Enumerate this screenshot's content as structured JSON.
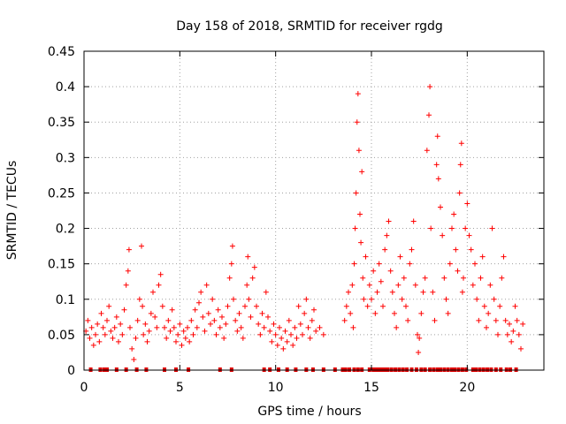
{
  "chart_data": {
    "type": "scatter",
    "title": "Day 158 of 2018, SRMTID for receiver rgdg",
    "xlabel": "GPS time / hours",
    "ylabel": "SRMTID / TECUs",
    "xlim": [
      0,
      24
    ],
    "ylim": [
      0,
      0.45
    ],
    "x_ticks": [
      0,
      5,
      10,
      15,
      20
    ],
    "x_tick_labels": [
      "0",
      "5",
      "10",
      "15",
      "20"
    ],
    "y_ticks": [
      0,
      0.05,
      0.1,
      0.15,
      0.2,
      0.25,
      0.3,
      0.35,
      0.4,
      0.45
    ],
    "y_tick_labels": [
      "0",
      "0.05",
      "0.1",
      "0.15",
      "0.2",
      "0.25",
      "0.3",
      "0.35",
      "0.4",
      "0.45"
    ],
    "grid": true,
    "marker": "+",
    "color": "#ff0000",
    "zero_marker_color": "#dd0000",
    "series": [
      {
        "name": "SRMTID",
        "points": [
          [
            0.1,
            0.055
          ],
          [
            0.2,
            0.07
          ],
          [
            0.3,
            0.045
          ],
          [
            0.4,
            0.06
          ],
          [
            0.5,
            0.035
          ],
          [
            0.6,
            0.05
          ],
          [
            0.7,
            0.065
          ],
          [
            0.8,
            0.04
          ],
          [
            0.9,
            0.08
          ],
          [
            1.0,
            0.06
          ],
          [
            1.1,
            0.05
          ],
          [
            1.2,
            0.07
          ],
          [
            1.3,
            0.09
          ],
          [
            1.4,
            0.055
          ],
          [
            1.5,
            0.045
          ],
          [
            1.6,
            0.06
          ],
          [
            1.7,
            0.075
          ],
          [
            1.8,
            0.04
          ],
          [
            1.9,
            0.065
          ],
          [
            2.0,
            0.05
          ],
          [
            2.1,
            0.085
          ],
          [
            2.2,
            0.12
          ],
          [
            2.3,
            0.14
          ],
          [
            2.35,
            0.17
          ],
          [
            2.4,
            0.06
          ],
          [
            2.5,
            0.03
          ],
          [
            2.6,
            0.015
          ],
          [
            2.7,
            0.045
          ],
          [
            2.8,
            0.07
          ],
          [
            2.9,
            0.1
          ],
          [
            3.0,
            0.175
          ],
          [
            3.05,
            0.09
          ],
          [
            3.1,
            0.05
          ],
          [
            3.2,
            0.065
          ],
          [
            3.3,
            0.04
          ],
          [
            3.4,
            0.055
          ],
          [
            3.5,
            0.08
          ],
          [
            3.6,
            0.11
          ],
          [
            3.7,
            0.075
          ],
          [
            3.8,
            0.06
          ],
          [
            3.9,
            0.12
          ],
          [
            4.0,
            0.135
          ],
          [
            4.1,
            0.09
          ],
          [
            4.2,
            0.06
          ],
          [
            4.3,
            0.045
          ],
          [
            4.4,
            0.07
          ],
          [
            4.5,
            0.055
          ],
          [
            4.6,
            0.085
          ],
          [
            4.7,
            0.06
          ],
          [
            4.8,
            0.04
          ],
          [
            4.9,
            0.05
          ],
          [
            5.0,
            0.065
          ],
          [
            5.1,
            0.035
          ],
          [
            5.2,
            0.055
          ],
          [
            5.3,
            0.045
          ],
          [
            5.4,
            0.06
          ],
          [
            5.5,
            0.04
          ],
          [
            5.6,
            0.07
          ],
          [
            5.7,
            0.05
          ],
          [
            5.8,
            0.085
          ],
          [
            5.9,
            0.06
          ],
          [
            6.0,
            0.095
          ],
          [
            6.1,
            0.11
          ],
          [
            6.2,
            0.075
          ],
          [
            6.3,
            0.055
          ],
          [
            6.4,
            0.12
          ],
          [
            6.5,
            0.08
          ],
          [
            6.6,
            0.065
          ],
          [
            6.7,
            0.1
          ],
          [
            6.8,
            0.07
          ],
          [
            6.9,
            0.05
          ],
          [
            7.0,
            0.085
          ],
          [
            7.1,
            0.06
          ],
          [
            7.2,
            0.075
          ],
          [
            7.3,
            0.045
          ],
          [
            7.4,
            0.065
          ],
          [
            7.5,
            0.09
          ],
          [
            7.6,
            0.13
          ],
          [
            7.7,
            0.15
          ],
          [
            7.75,
            0.175
          ],
          [
            7.8,
            0.1
          ],
          [
            7.9,
            0.07
          ],
          [
            8.0,
            0.055
          ],
          [
            8.1,
            0.08
          ],
          [
            8.2,
            0.06
          ],
          [
            8.3,
            0.045
          ],
          [
            8.4,
            0.09
          ],
          [
            8.5,
            0.12
          ],
          [
            8.55,
            0.16
          ],
          [
            8.6,
            0.1
          ],
          [
            8.7,
            0.075
          ],
          [
            8.8,
            0.13
          ],
          [
            8.9,
            0.145
          ],
          [
            9.0,
            0.09
          ],
          [
            9.1,
            0.065
          ],
          [
            9.2,
            0.05
          ],
          [
            9.3,
            0.08
          ],
          [
            9.4,
            0.06
          ],
          [
            9.5,
            0.11
          ],
          [
            9.6,
            0.075
          ],
          [
            9.7,
            0.055
          ],
          [
            9.8,
            0.04
          ],
          [
            9.9,
            0.065
          ],
          [
            10.0,
            0.05
          ],
          [
            10.1,
            0.035
          ],
          [
            10.2,
            0.06
          ],
          [
            10.3,
            0.045
          ],
          [
            10.4,
            0.03
          ],
          [
            10.5,
            0.055
          ],
          [
            10.6,
            0.04
          ],
          [
            10.7,
            0.07
          ],
          [
            10.8,
            0.05
          ],
          [
            10.9,
            0.035
          ],
          [
            11.0,
            0.06
          ],
          [
            11.1,
            0.045
          ],
          [
            11.2,
            0.09
          ],
          [
            11.3,
            0.065
          ],
          [
            11.4,
            0.05
          ],
          [
            11.5,
            0.08
          ],
          [
            11.6,
            0.1
          ],
          [
            11.7,
            0.06
          ],
          [
            11.8,
            0.045
          ],
          [
            11.9,
            0.07
          ],
          [
            12.0,
            0.085
          ],
          [
            12.1,
            0.055
          ],
          [
            12.3,
            0.06
          ],
          [
            12.5,
            0.05
          ],
          [
            13.6,
            0.07
          ],
          [
            13.7,
            0.09
          ],
          [
            13.8,
            0.11
          ],
          [
            13.9,
            0.08
          ],
          [
            14.0,
            0.12
          ],
          [
            14.05,
            0.06
          ],
          [
            14.1,
            0.15
          ],
          [
            14.15,
            0.2
          ],
          [
            14.2,
            0.25
          ],
          [
            14.25,
            0.35
          ],
          [
            14.3,
            0.39
          ],
          [
            14.35,
            0.31
          ],
          [
            14.4,
            0.22
          ],
          [
            14.45,
            0.18
          ],
          [
            14.5,
            0.28
          ],
          [
            14.55,
            0.13
          ],
          [
            14.6,
            0.1
          ],
          [
            14.7,
            0.16
          ],
          [
            14.8,
            0.09
          ],
          [
            14.9,
            0.12
          ],
          [
            15.0,
            0.1
          ],
          [
            15.1,
            0.14
          ],
          [
            15.2,
            0.08
          ],
          [
            15.3,
            0.11
          ],
          [
            15.4,
            0.15
          ],
          [
            15.5,
            0.125
          ],
          [
            15.6,
            0.09
          ],
          [
            15.7,
            0.17
          ],
          [
            15.8,
            0.19
          ],
          [
            15.9,
            0.21
          ],
          [
            16.0,
            0.14
          ],
          [
            16.1,
            0.11
          ],
          [
            16.2,
            0.08
          ],
          [
            16.3,
            0.06
          ],
          [
            16.4,
            0.12
          ],
          [
            16.5,
            0.16
          ],
          [
            16.6,
            0.1
          ],
          [
            16.7,
            0.13
          ],
          [
            16.8,
            0.09
          ],
          [
            16.9,
            0.07
          ],
          [
            17.0,
            0.15
          ],
          [
            17.1,
            0.17
          ],
          [
            17.2,
            0.21
          ],
          [
            17.3,
            0.12
          ],
          [
            17.4,
            0.05
          ],
          [
            17.45,
            0.025
          ],
          [
            17.5,
            0.045
          ],
          [
            17.6,
            0.08
          ],
          [
            17.7,
            0.11
          ],
          [
            17.8,
            0.13
          ],
          [
            17.9,
            0.31
          ],
          [
            18.0,
            0.36
          ],
          [
            18.05,
            0.4
          ],
          [
            18.1,
            0.2
          ],
          [
            18.2,
            0.11
          ],
          [
            18.3,
            0.07
          ],
          [
            18.4,
            0.29
          ],
          [
            18.45,
            0.33
          ],
          [
            18.5,
            0.27
          ],
          [
            18.6,
            0.23
          ],
          [
            18.7,
            0.19
          ],
          [
            18.8,
            0.13
          ],
          [
            18.9,
            0.1
          ],
          [
            19.0,
            0.08
          ],
          [
            19.1,
            0.15
          ],
          [
            19.2,
            0.2
          ],
          [
            19.3,
            0.22
          ],
          [
            19.4,
            0.17
          ],
          [
            19.5,
            0.14
          ],
          [
            19.6,
            0.25
          ],
          [
            19.65,
            0.29
          ],
          [
            19.7,
            0.32
          ],
          [
            19.75,
            0.11
          ],
          [
            19.8,
            0.13
          ],
          [
            19.9,
            0.2
          ],
          [
            20.0,
            0.235
          ],
          [
            20.1,
            0.19
          ],
          [
            20.2,
            0.17
          ],
          [
            20.3,
            0.12
          ],
          [
            20.4,
            0.15
          ],
          [
            20.5,
            0.1
          ],
          [
            20.6,
            0.07
          ],
          [
            20.7,
            0.13
          ],
          [
            20.8,
            0.16
          ],
          [
            20.9,
            0.09
          ],
          [
            21.0,
            0.06
          ],
          [
            21.1,
            0.08
          ],
          [
            21.2,
            0.12
          ],
          [
            21.3,
            0.2
          ],
          [
            21.4,
            0.1
          ],
          [
            21.5,
            0.07
          ],
          [
            21.6,
            0.05
          ],
          [
            21.7,
            0.09
          ],
          [
            21.8,
            0.13
          ],
          [
            21.9,
            0.16
          ],
          [
            22.0,
            0.07
          ],
          [
            22.1,
            0.05
          ],
          [
            22.2,
            0.065
          ],
          [
            22.3,
            0.04
          ],
          [
            22.4,
            0.055
          ],
          [
            22.5,
            0.09
          ],
          [
            22.6,
            0.07
          ],
          [
            22.7,
            0.05
          ],
          [
            22.8,
            0.03
          ],
          [
            22.9,
            0.065
          ]
        ]
      }
    ],
    "zero_points_x": [
      0.35,
      0.85,
      1.05,
      1.2,
      1.7,
      2.2,
      2.75,
      3.25,
      4.2,
      4.8,
      5.45,
      7.1,
      7.7,
      9.4,
      9.7,
      10.15,
      10.6,
      11.05,
      11.6,
      11.95,
      12.5,
      13.1,
      13.5,
      13.65,
      13.85,
      14.1,
      14.3,
      14.5,
      14.9,
      15.1,
      15.25,
      15.4,
      15.55,
      15.7,
      15.85,
      16.05,
      16.25,
      16.45,
      16.65,
      16.85,
      17.1,
      17.35,
      17.6,
      17.8,
      18.05,
      18.25,
      18.45,
      18.6,
      18.8,
      19.0,
      19.2,
      19.35,
      19.55,
      19.75,
      19.95,
      20.3,
      20.45,
      20.65,
      20.85,
      21.05,
      21.25,
      21.5,
      21.75,
      22.05,
      22.25,
      22.55
    ]
  }
}
